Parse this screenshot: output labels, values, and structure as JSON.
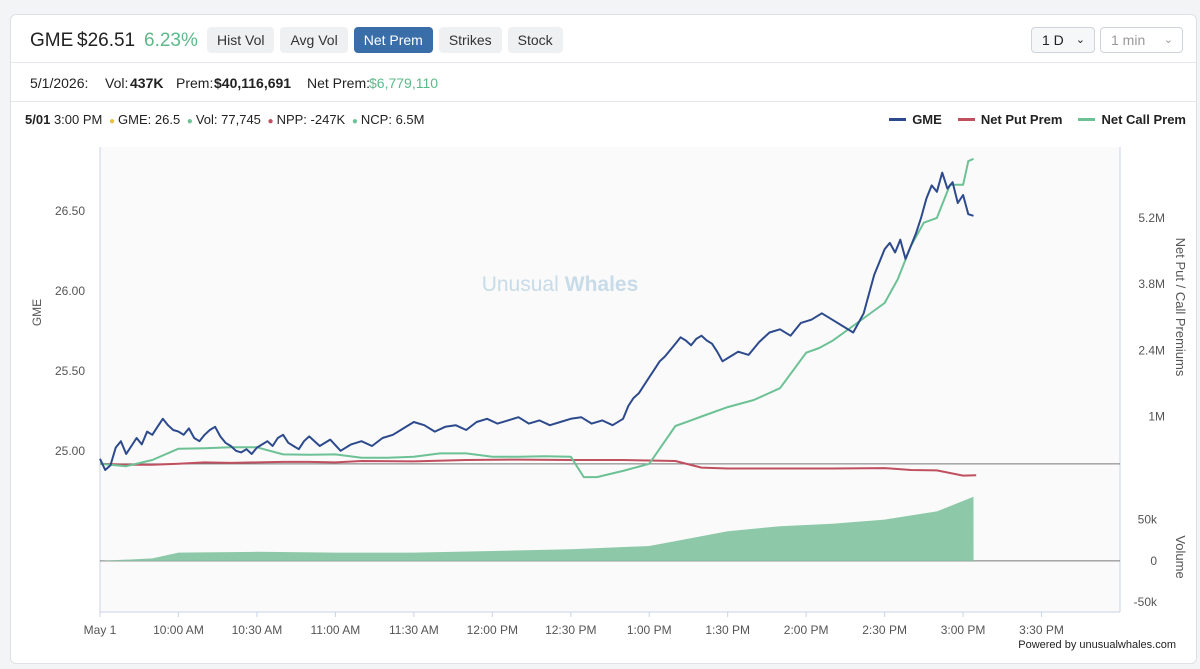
{
  "header": {
    "ticker": "GME",
    "price": "$26.51",
    "change": "6.23%",
    "tabs": [
      {
        "label": "Hist Vol",
        "active": false
      },
      {
        "label": "Avg Vol",
        "active": false
      },
      {
        "label": "Net Prem",
        "active": true
      },
      {
        "label": "Strikes",
        "active": false
      },
      {
        "label": "Stock",
        "active": false
      }
    ],
    "range_select": "1 D",
    "interval_select": "1 min",
    "chevron_icon": "chevron-down-icon"
  },
  "summary": {
    "date": "5/1/2026:",
    "vol_label": "Vol:",
    "vol_value": "437K",
    "prem_label": "Prem:",
    "prem_value": "$40,116,691",
    "net_prem_label": "Net Prem:",
    "net_prem_value": "$6,779,110"
  },
  "hover": {
    "date": "5/01",
    "time": "3:00 PM",
    "gme": "GME: 26.5",
    "vol": "Vol: 77,745",
    "npp": "NPP: -247K",
    "ncp": "NCP: 6.5M"
  },
  "colors": {
    "gme": "#2c4a8c",
    "net_put": "#c0505f",
    "net_call": "#6cc195",
    "volume_fill": "#8dc9a9",
    "dot_yellow": "#e8c03f"
  },
  "footer": "Powered by unusualwhales.com",
  "chart_data": {
    "type": "line",
    "watermark": [
      "Unusual",
      "Whales"
    ],
    "legend": {
      "position": "top-right",
      "entries": [
        "GME",
        "Net Put Prem",
        "Net Call Prem"
      ]
    },
    "x_ticks": [
      "May 1",
      "10:00 AM",
      "10:30 AM",
      "11:00 AM",
      "11:30 AM",
      "12:00 PM",
      "12:30 PM",
      "1:00 PM",
      "1:30 PM",
      "2:00 PM",
      "2:30 PM",
      "3:00 PM",
      "3:30 PM"
    ],
    "x_tick_minutes": [
      0,
      30,
      60,
      90,
      120,
      150,
      180,
      210,
      240,
      270,
      300,
      330,
      360
    ],
    "x_range_minutes": [
      0,
      390
    ],
    "left_axis": {
      "label": "GME",
      "ticks": [
        "26.50",
        "26.00",
        "25.50",
        "25.00"
      ],
      "tick_values": [
        26.5,
        26.0,
        25.5,
        25.0
      ],
      "range": [
        24.83,
        26.9
      ]
    },
    "right_axis": {
      "label": "Net Put / Call Premiums",
      "ticks": [
        "5.2M",
        "3.8M",
        "2.4M",
        "1M"
      ],
      "tick_values": [
        5.2,
        3.8,
        2.4,
        1.0
      ],
      "units": "M",
      "range": [
        -0.3,
        6.7
      ]
    },
    "volume_axis": {
      "label": "Volume",
      "ticks": [
        "50k",
        "0",
        "-50k"
      ],
      "tick_values": [
        50,
        0,
        -50
      ],
      "units": "k",
      "range": [
        -62,
        92
      ]
    },
    "series": [
      {
        "name": "GME",
        "axis": "left",
        "x": [
          0,
          2,
          4,
          6,
          8,
          10,
          12,
          14,
          16,
          18,
          20,
          22,
          24,
          26,
          28,
          30,
          32,
          34,
          36,
          38,
          40,
          42,
          44,
          46,
          48,
          50,
          52,
          54,
          56,
          58,
          60,
          62,
          64,
          66,
          68,
          70,
          72,
          74,
          76,
          78,
          80,
          84,
          88,
          92,
          96,
          100,
          104,
          108,
          112,
          116,
          120,
          124,
          128,
          132,
          136,
          140,
          144,
          148,
          152,
          156,
          160,
          164,
          168,
          172,
          176,
          180,
          184,
          188,
          192,
          196,
          200,
          202,
          204,
          206,
          208,
          210,
          212,
          214,
          216,
          218,
          220,
          222,
          224,
          226,
          228,
          230,
          232,
          234,
          236,
          238,
          240,
          244,
          248,
          252,
          256,
          260,
          264,
          268,
          272,
          276,
          280,
          284,
          288,
          292,
          294,
          296,
          298,
          300,
          302,
          304,
          306,
          308,
          310,
          312,
          314,
          316,
          318,
          320,
          322,
          324,
          326,
          328,
          330,
          332,
          334
        ],
        "y": [
          24.95,
          24.88,
          24.91,
          25.02,
          25.06,
          24.98,
          25.03,
          25.08,
          25.04,
          25.12,
          25.1,
          25.15,
          25.2,
          25.16,
          25.13,
          25.12,
          25.1,
          25.14,
          25.08,
          25.06,
          25.1,
          25.13,
          25.15,
          25.09,
          25.05,
          25.03,
          25.0,
          24.99,
          25.01,
          24.98,
          25.02,
          25.04,
          25.06,
          25.03,
          25.08,
          25.1,
          25.05,
          25.03,
          25.01,
          25.06,
          25.09,
          25.03,
          25.07,
          25.0,
          25.04,
          25.06,
          25.03,
          25.08,
          25.1,
          25.14,
          25.18,
          25.16,
          25.12,
          25.15,
          25.16,
          25.13,
          25.18,
          25.2,
          25.17,
          25.19,
          25.21,
          25.17,
          25.19,
          25.16,
          25.18,
          25.2,
          25.21,
          25.17,
          25.19,
          25.16,
          25.2,
          25.28,
          25.33,
          25.36,
          25.41,
          25.46,
          25.51,
          25.56,
          25.59,
          25.63,
          25.67,
          25.71,
          25.69,
          25.66,
          25.7,
          25.72,
          25.69,
          25.67,
          25.62,
          25.56,
          25.58,
          25.62,
          25.6,
          25.68,
          25.74,
          25.76,
          25.72,
          25.8,
          25.82,
          25.86,
          25.82,
          25.78,
          25.74,
          25.86,
          25.98,
          26.1,
          26.18,
          26.26,
          26.3,
          26.24,
          26.32,
          26.2,
          26.28,
          26.36,
          26.46,
          26.58,
          26.66,
          26.62,
          26.74,
          26.64,
          26.68,
          26.55,
          26.6,
          26.48,
          26.47
        ]
      },
      {
        "name": "Net Put Prem",
        "axis": "right",
        "x": [
          0,
          10,
          20,
          30,
          40,
          50,
          60,
          70,
          80,
          90,
          100,
          120,
          140,
          160,
          180,
          200,
          210,
          220,
          230,
          240,
          260,
          280,
          300,
          310,
          320,
          330,
          335
        ],
        "y": [
          0.0,
          -0.02,
          -0.02,
          0.0,
          0.03,
          0.02,
          0.03,
          0.04,
          0.04,
          0.03,
          0.06,
          0.05,
          0.08,
          0.09,
          0.08,
          0.08,
          0.07,
          0.06,
          -0.08,
          -0.1,
          -0.1,
          -0.1,
          -0.09,
          -0.13,
          -0.14,
          -0.25,
          -0.24
        ]
      },
      {
        "name": "Net Call Prem",
        "axis": "right",
        "x": [
          0,
          10,
          20,
          30,
          40,
          50,
          60,
          70,
          80,
          90,
          100,
          110,
          120,
          130,
          140,
          150,
          160,
          170,
          180,
          185,
          190,
          200,
          210,
          215,
          220,
          225,
          230,
          240,
          250,
          260,
          270,
          275,
          280,
          290,
          300,
          305,
          310,
          315,
          320,
          325,
          330,
          332,
          334
        ],
        "y": [
          0.0,
          -0.05,
          0.08,
          0.32,
          0.33,
          0.35,
          0.35,
          0.2,
          0.19,
          0.2,
          0.13,
          0.13,
          0.15,
          0.22,
          0.22,
          0.15,
          0.15,
          0.16,
          0.15,
          -0.28,
          -0.28,
          -0.15,
          0.0,
          0.4,
          0.8,
          0.9,
          1.0,
          1.2,
          1.35,
          1.6,
          2.35,
          2.45,
          2.6,
          3.0,
          3.4,
          3.9,
          4.6,
          5.1,
          5.2,
          5.9,
          5.9,
          6.4,
          6.45
        ]
      },
      {
        "name": "Volume",
        "axis": "volume",
        "x": [
          0,
          20,
          30,
          60,
          90,
          120,
          150,
          180,
          210,
          220,
          240,
          260,
          280,
          300,
          320,
          334
        ],
        "y": [
          0,
          3,
          10,
          11,
          10,
          10,
          12,
          14,
          18,
          24,
          36,
          42,
          45,
          50,
          60,
          77.7
        ]
      }
    ]
  }
}
